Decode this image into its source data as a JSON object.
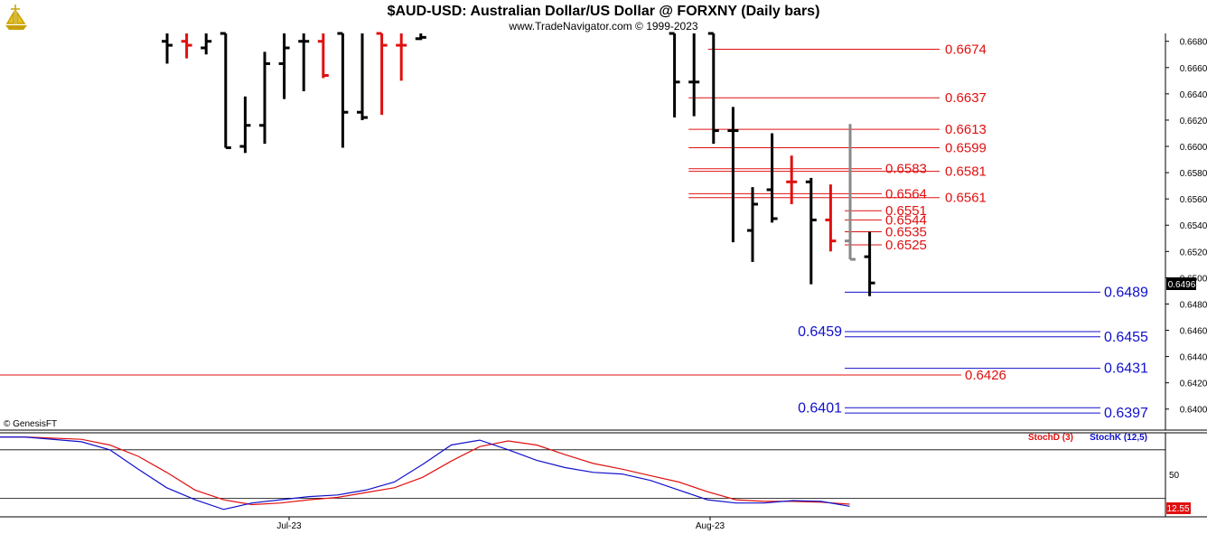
{
  "header": {
    "title": "$AUD-USD:  Australian Dollar/US Dollar @ FORXNY  (Daily bars)",
    "subtitle": "www.TradeNavigator.com © 1999-2023",
    "copyright": "© GenesisFT",
    "logo_icon": "ship-logo-icon"
  },
  "colors": {
    "up_bar": "#000000",
    "down_bar": "#e01010",
    "gray_bar": "#888888",
    "red_level": "#e01010",
    "blue_level": "#1010cc",
    "stoch_d": "#e01010",
    "stoch_k": "#1010cc"
  },
  "chart_data": [
    {
      "type": "ohlc",
      "title": "$AUD-USD:  Australian Dollar/US Dollar @ FORXNY  (Daily bars)",
      "price_axis": {
        "ylim": [
          0.6384,
          0.6686
        ],
        "ticks": [
          "0.6680",
          "0.6660",
          "0.6640",
          "0.6620",
          "0.6600",
          "0.6580",
          "0.6560",
          "0.6540",
          "0.6520",
          "0.6500",
          "0.6480",
          "0.6460",
          "0.6440",
          "0.6420",
          "0.6400"
        ],
        "last_price": "0.6496"
      },
      "x_labels": [
        {
          "label": "Jul-23",
          "bar_index": 7
        },
        {
          "label": "Aug-23",
          "bar_index": 29
        }
      ],
      "bars": [
        {
          "i": 0,
          "o": 0.668,
          "h": 0.6686,
          "l": 0.6663,
          "c": 0.6677,
          "dir": "up"
        },
        {
          "i": 1,
          "o": 0.668,
          "h": 0.6686,
          "l": 0.6667,
          "c": 0.6677,
          "dir": "down"
        },
        {
          "i": 2,
          "o": 0.6675,
          "h": 0.6686,
          "l": 0.667,
          "c": 0.668,
          "dir": "up"
        },
        {
          "i": 3,
          "o": 0.6686,
          "h": 0.6686,
          "l": 0.6599,
          "c": 0.6599,
          "dir": "up"
        },
        {
          "i": 4,
          "o": 0.66,
          "h": 0.6638,
          "l": 0.6595,
          "c": 0.6616,
          "dir": "up"
        },
        {
          "i": 5,
          "o": 0.6616,
          "h": 0.6672,
          "l": 0.6602,
          "c": 0.6663,
          "dir": "up"
        },
        {
          "i": 6,
          "o": 0.6663,
          "h": 0.6686,
          "l": 0.6636,
          "c": 0.6675,
          "dir": "up"
        },
        {
          "i": 7,
          "o": 0.668,
          "h": 0.6686,
          "l": 0.6642,
          "c": 0.668,
          "dir": "up"
        },
        {
          "i": 8,
          "o": 0.668,
          "h": 0.6686,
          "l": 0.6652,
          "c": 0.6654,
          "dir": "down"
        },
        {
          "i": 9,
          "o": 0.6686,
          "h": 0.6686,
          "l": 0.6599,
          "c": 0.6626,
          "dir": "up"
        },
        {
          "i": 10,
          "o": 0.6626,
          "h": 0.6686,
          "l": 0.662,
          "c": 0.6622,
          "dir": "up"
        },
        {
          "i": 11,
          "o": 0.6686,
          "h": 0.6686,
          "l": 0.6624,
          "c": 0.6677,
          "dir": "down"
        },
        {
          "i": 12,
          "o": 0.6677,
          "h": 0.6686,
          "l": 0.665,
          "c": 0.6677,
          "dir": "down"
        },
        {
          "i": 13,
          "o": 0.6682,
          "h": 0.6686,
          "l": 0.6681,
          "c": 0.6683,
          "dir": "up"
        },
        {
          "i": 26,
          "o": 0.6686,
          "h": 0.6686,
          "l": 0.6622,
          "c": 0.6649,
          "dir": "up"
        },
        {
          "i": 27,
          "o": 0.6649,
          "h": 0.6686,
          "l": 0.6623,
          "c": 0.6649,
          "dir": "up"
        },
        {
          "i": 28,
          "o": 0.6686,
          "h": 0.6686,
          "l": 0.6602,
          "c": 0.6612,
          "dir": "up"
        },
        {
          "i": 29,
          "o": 0.6612,
          "h": 0.663,
          "l": 0.6527,
          "c": 0.6612,
          "dir": "up"
        },
        {
          "i": 30,
          "o": 0.6536,
          "h": 0.6569,
          "l": 0.6512,
          "c": 0.6556,
          "dir": "up"
        },
        {
          "i": 31,
          "o": 0.6567,
          "h": 0.661,
          "l": 0.6542,
          "c": 0.6545,
          "dir": "up"
        },
        {
          "i": 32,
          "o": 0.6573,
          "h": 0.6593,
          "l": 0.6556,
          "c": 0.6573,
          "dir": "down"
        },
        {
          "i": 33,
          "o": 0.6573,
          "h": 0.6576,
          "l": 0.6495,
          "c": 0.6544,
          "dir": "up"
        },
        {
          "i": 34,
          "o": 0.6544,
          "h": 0.6571,
          "l": 0.652,
          "c": 0.6528,
          "dir": "down"
        },
        {
          "i": 35,
          "o": 0.6528,
          "h": 0.6617,
          "l": 0.6514,
          "c": 0.6514,
          "dir": "gray"
        },
        {
          "i": 36,
          "o": 0.6516,
          "h": 0.6535,
          "l": 0.6486,
          "c": 0.6496,
          "dir": "up"
        }
      ],
      "levels": [
        {
          "label": "0.6674",
          "price": 0.6674,
          "color": "red",
          "start_bar": 28,
          "text_side": "right"
        },
        {
          "label": "0.6637",
          "price": 0.6637,
          "color": "red",
          "start_bar": 27,
          "text_side": "right"
        },
        {
          "label": "0.6613",
          "price": 0.6613,
          "color": "red",
          "start_bar": 27,
          "text_side": "right"
        },
        {
          "label": "0.6599",
          "price": 0.6599,
          "color": "red",
          "start_bar": 27,
          "text_side": "right"
        },
        {
          "label": "0.6583",
          "price": 0.6583,
          "color": "red",
          "start_bar": 27,
          "text_side": "inner"
        },
        {
          "label": "0.6581",
          "price": 0.6581,
          "color": "red",
          "start_bar": 27,
          "text_side": "right"
        },
        {
          "label": "0.6564",
          "price": 0.6564,
          "color": "red",
          "start_bar": 27,
          "text_side": "inner"
        },
        {
          "label": "0.6561",
          "price": 0.6561,
          "color": "red",
          "start_bar": 27,
          "text_side": "right"
        },
        {
          "label": "0.6551",
          "price": 0.6551,
          "color": "red",
          "start_bar": 35,
          "text_side": "inner"
        },
        {
          "label": "0.6544",
          "price": 0.6544,
          "color": "red",
          "start_bar": 35,
          "text_side": "inner"
        },
        {
          "label": "0.6535",
          "price": 0.6535,
          "color": "red",
          "start_bar": 35,
          "text_side": "inner"
        },
        {
          "label": "0.6525",
          "price": 0.6525,
          "color": "red",
          "start_bar": 35,
          "text_side": "inner"
        },
        {
          "label": "0.6489",
          "price": 0.6489,
          "color": "blue",
          "start_bar": 35,
          "text_side": "far"
        },
        {
          "label": "0.6459",
          "price": 0.6459,
          "color": "blue",
          "start_bar": 35,
          "text_side": "left"
        },
        {
          "label": "0.6455",
          "price": 0.6455,
          "color": "blue",
          "start_bar": 35,
          "text_side": "far"
        },
        {
          "label": "0.6431",
          "price": 0.6431,
          "color": "blue",
          "start_bar": 35,
          "text_side": "far"
        },
        {
          "label": "0.6426",
          "price": 0.6426,
          "color": "red",
          "start_bar": -1,
          "text_side": "mid"
        },
        {
          "label": "0.6401",
          "price": 0.6401,
          "color": "blue",
          "start_bar": 35,
          "text_side": "left"
        },
        {
          "label": "0.6397",
          "price": 0.6397,
          "color": "blue",
          "start_bar": 35,
          "text_side": "far"
        }
      ]
    },
    {
      "type": "line",
      "title": "",
      "legend": [
        {
          "name": "StochD (3)",
          "color": "red"
        },
        {
          "name": "StochK (12,5)",
          "color": "blue"
        }
      ],
      "ylim": [
        0,
        100
      ],
      "y_tick": "50",
      "last_value": "12.55",
      "reference_lines": [
        80,
        20
      ],
      "series": [
        {
          "name": "StochD (3)",
          "color": "red",
          "values": [
            {
              "i": -4,
              "v": 96
            },
            {
              "i": -2,
              "v": 96
            },
            {
              "i": 0,
              "v": 93
            },
            {
              "i": 1,
              "v": 86
            },
            {
              "i": 2,
              "v": 72
            },
            {
              "i": 3,
              "v": 52
            },
            {
              "i": 4,
              "v": 30
            },
            {
              "i": 5,
              "v": 18
            },
            {
              "i": 6,
              "v": 12
            },
            {
              "i": 7,
              "v": 14
            },
            {
              "i": 8,
              "v": 18
            },
            {
              "i": 9,
              "v": 21
            },
            {
              "i": 10,
              "v": 27
            },
            {
              "i": 11,
              "v": 33
            },
            {
              "i": 12,
              "v": 46
            },
            {
              "i": 13,
              "v": 66
            },
            {
              "i": 14,
              "v": 84
            },
            {
              "i": 15,
              "v": 91
            },
            {
              "i": 16,
              "v": 86
            },
            {
              "i": 17,
              "v": 74
            },
            {
              "i": 18,
              "v": 63
            },
            {
              "i": 19,
              "v": 56
            },
            {
              "i": 20,
              "v": 48
            },
            {
              "i": 21,
              "v": 40
            },
            {
              "i": 22,
              "v": 28
            },
            {
              "i": 23,
              "v": 18
            },
            {
              "i": 24,
              "v": 16
            },
            {
              "i": 25,
              "v": 16
            },
            {
              "i": 26,
              "v": 15
            },
            {
              "i": 27,
              "v": 12.55
            }
          ]
        },
        {
          "name": "StochK (12,5)",
          "color": "blue",
          "values": [
            {
              "i": -4,
              "v": 96
            },
            {
              "i": -2,
              "v": 96
            },
            {
              "i": 0,
              "v": 90
            },
            {
              "i": 1,
              "v": 80
            },
            {
              "i": 2,
              "v": 56
            },
            {
              "i": 3,
              "v": 33
            },
            {
              "i": 4,
              "v": 18
            },
            {
              "i": 5,
              "v": 6
            },
            {
              "i": 6,
              "v": 14
            },
            {
              "i": 7,
              "v": 18
            },
            {
              "i": 8,
              "v": 22
            },
            {
              "i": 9,
              "v": 24
            },
            {
              "i": 10,
              "v": 30
            },
            {
              "i": 11,
              "v": 40
            },
            {
              "i": 12,
              "v": 62
            },
            {
              "i": 13,
              "v": 86
            },
            {
              "i": 14,
              "v": 92
            },
            {
              "i": 15,
              "v": 80
            },
            {
              "i": 16,
              "v": 67
            },
            {
              "i": 17,
              "v": 58
            },
            {
              "i": 18,
              "v": 52
            },
            {
              "i": 19,
              "v": 50
            },
            {
              "i": 20,
              "v": 42
            },
            {
              "i": 21,
              "v": 30
            },
            {
              "i": 22,
              "v": 18
            },
            {
              "i": 23,
              "v": 14
            },
            {
              "i": 24,
              "v": 14
            },
            {
              "i": 25,
              "v": 17
            },
            {
              "i": 26,
              "v": 16
            },
            {
              "i": 27,
              "v": 10
            }
          ]
        }
      ]
    }
  ]
}
